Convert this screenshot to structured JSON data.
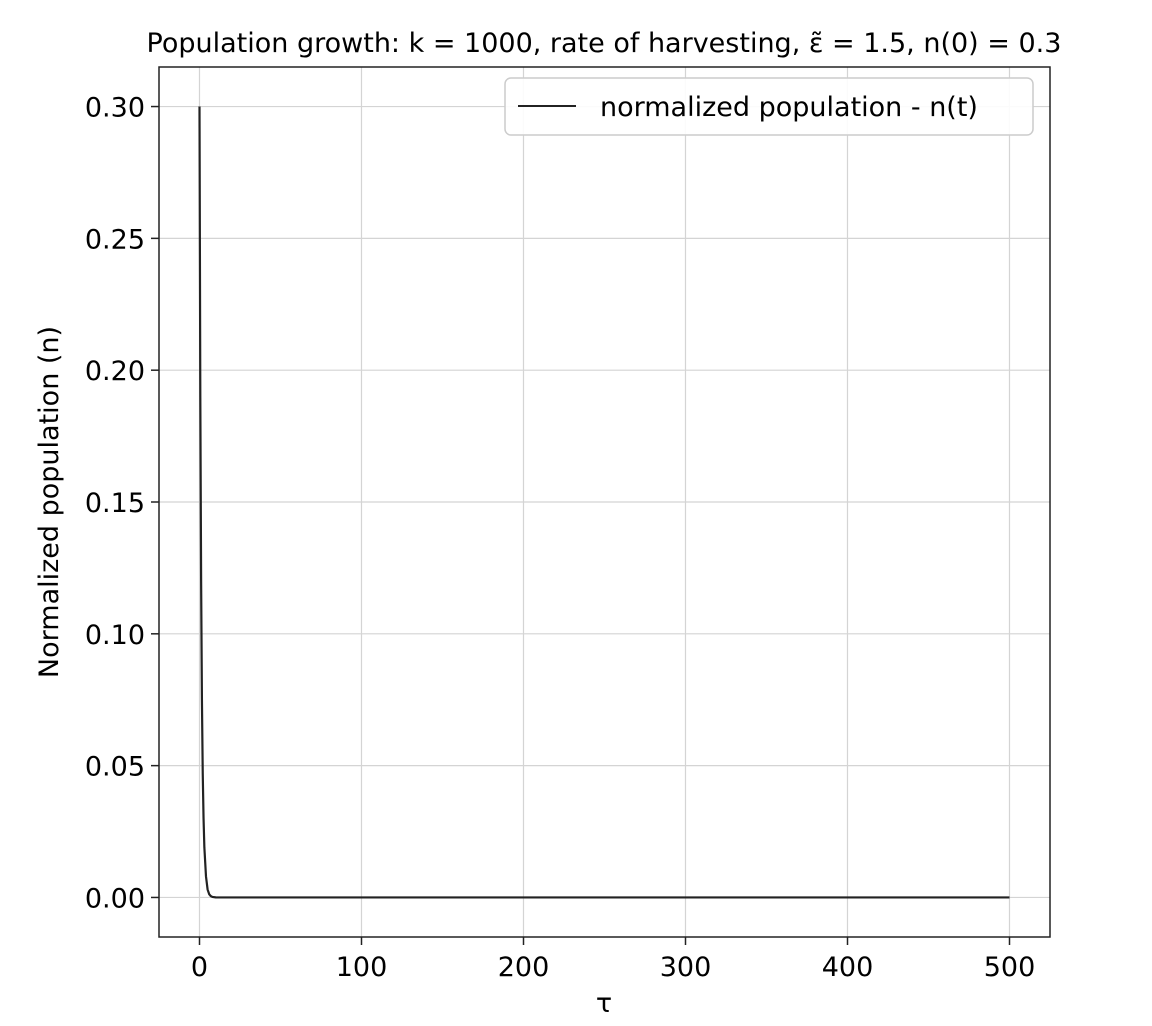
{
  "chart_data": {
    "type": "line",
    "title": "Population growth: k = 1000, rate of harvesting, ε̃ = 1.5, n(0) = 0.3",
    "xlabel": "τ",
    "ylabel": "Normalized population (n)",
    "xlim": [
      -25,
      525
    ],
    "ylim": [
      -0.015,
      0.315
    ],
    "x_ticks": [
      0,
      100,
      200,
      300,
      400,
      500
    ],
    "x_tick_labels": [
      "0",
      "100",
      "200",
      "300",
      "400",
      "500"
    ],
    "y_ticks": [
      0.0,
      0.05,
      0.1,
      0.15,
      0.2,
      0.25,
      0.3
    ],
    "y_tick_labels": [
      "0.00",
      "0.05",
      "0.10",
      "0.15",
      "0.20",
      "0.25",
      "0.30"
    ],
    "grid": true,
    "legend": "top-right",
    "series": [
      {
        "name": "normalized population - n(t)",
        "color": "#222222",
        "x": [
          0,
          0.5,
          1,
          1.5,
          2,
          2.5,
          3,
          4,
          5,
          6,
          7,
          8,
          10,
          15,
          20,
          50,
          100,
          200,
          300,
          400,
          500
        ],
        "y": [
          0.3,
          0.19,
          0.12,
          0.075,
          0.047,
          0.03,
          0.019,
          0.008,
          0.003,
          0.0012,
          0.0005,
          0.0002,
          3e-05,
          0,
          0,
          0,
          0,
          0,
          0,
          0,
          0
        ]
      }
    ]
  }
}
